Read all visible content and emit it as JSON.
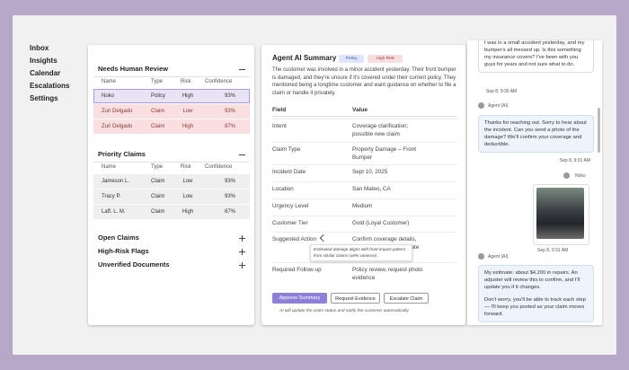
{
  "nav": [
    "Inbox",
    "Insights",
    "Calendar",
    "Escalations",
    "Settings"
  ],
  "review": {
    "title": "Needs Human Review",
    "columns": [
      "Name",
      "Type",
      "Risk",
      "Confidence"
    ],
    "rows": [
      [
        "Noko",
        "Policy",
        "High",
        "93%"
      ],
      [
        "Zuri Delgado",
        "Claim",
        "Low",
        "93%"
      ],
      [
        "Zuri Delgado",
        "Claim",
        "High",
        "87%"
      ]
    ]
  },
  "priority": {
    "title": "Priority Claims",
    "columns": [
      "Name",
      "Type",
      "Risk",
      "Confidence"
    ],
    "rows": [
      [
        "Jameson L.",
        "Claim",
        "Low",
        "93%"
      ],
      [
        "Tracy P.",
        "Claim",
        "Low",
        "93%"
      ],
      [
        "Laff. L. M.",
        "Claim",
        "High",
        "87%"
      ]
    ]
  },
  "sections": [
    "Open Claims",
    "High-Risk Flags",
    "Unverified Documents"
  ],
  "summary": {
    "title": "Agent AI Summary",
    "badges": [
      "Policy",
      "High Risk"
    ],
    "text": "The customer was involved in a minor accident yesterday. Their front bumper is damaged, and they're unsure if it's covered under their current policy. They mentioned being a longtime customer and want guidance on whether to file a claim or handle it privately.",
    "columns": [
      "Field",
      "Value"
    ],
    "rows": [
      {
        "field": "Intent",
        "value": [
          "Coverage clarification;",
          "possible new claim"
        ]
      },
      {
        "field": "Claim Type",
        "value": [
          "Property Damage – Front",
          "Bumper"
        ]
      },
      {
        "field": "Incident Date",
        "value": [
          "Sept 10, 2025"
        ]
      },
      {
        "field": "Location",
        "value": [
          "San Mateo, CA"
        ]
      },
      {
        "field": "Urgency Level",
        "value": [
          "Medium"
        ]
      },
      {
        "field": "Customer Tier",
        "value": [
          "Gold (Loyal Customer)"
        ]
      },
      {
        "field": "Suggested Action",
        "value": [
          "Confirm coverage details,",
          "itiate"
        ]
      },
      {
        "field": "Required Follow-up",
        "value": [
          "Policy review, request photo",
          "evidence"
        ]
      }
    ],
    "tooltip": "Estimated damage aligns with front-impact pattern from similar claims (±6% variance)",
    "buttons": [
      "Approve Summary",
      "Request Evidence",
      "Escalate Claim"
    ],
    "note": "AI will update the claim status and notify the customer automatically."
  },
  "chat": {
    "messages": [
      "I was in a small accident yesterday, and my bumper's all messed up. Is this something my insurance covers? I've been with you guys for years and not sure what to do.",
      "Thanks for reaching out. Sorry to hear about the incident. Can you send a photo of the damage? We'll confirm your coverage and deductible.",
      "My estimate: about $4,200 in repairs. An adjuster will review this to confirm, and I'll update you if it changes.",
      "Don't worry, you'll be able to track each step — I'll keep you posted as your claim moves forward."
    ],
    "times": [
      "Sep 8, 9:30 AM",
      "Sep 8, 9:31 AM",
      "Sep 8, 9:31 AM"
    ],
    "senders": [
      "Agent (AI)",
      "Noko",
      "Agent (AI)"
    ]
  }
}
